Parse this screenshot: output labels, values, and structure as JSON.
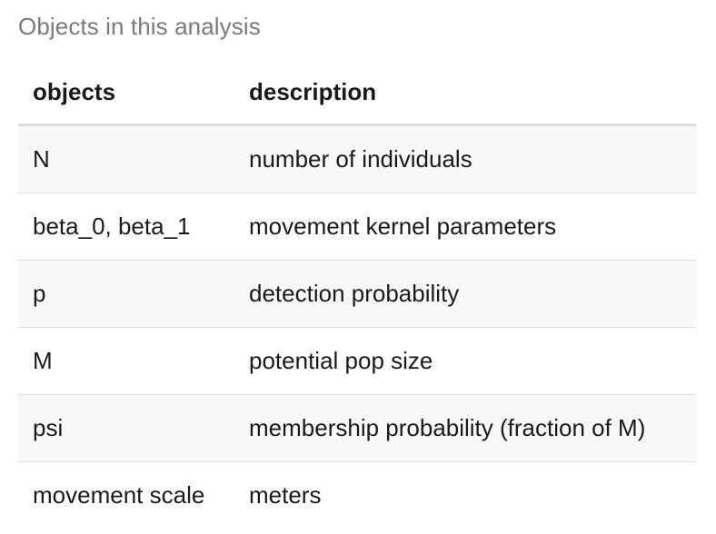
{
  "caption": "Objects in this analysis",
  "table": {
    "headers": {
      "objects": "objects",
      "description": "description"
    },
    "rows": [
      {
        "object": "N",
        "description": "number of individuals"
      },
      {
        "object": "beta_0, beta_1",
        "description": "movement kernel parameters"
      },
      {
        "object": "p",
        "description": "detection probability"
      },
      {
        "object": "M",
        "description": "potential pop size"
      },
      {
        "object": "psi",
        "description": "membership probability (fraction of M)"
      },
      {
        "object": "movement scale",
        "description": "meters"
      }
    ]
  }
}
